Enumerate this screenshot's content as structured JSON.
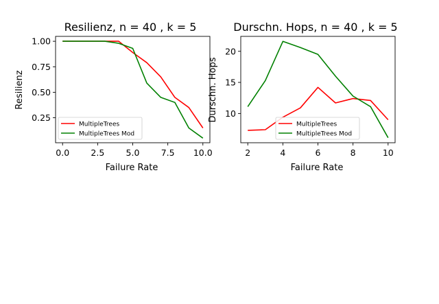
{
  "chart_data": [
    {
      "type": "line",
      "title": "Resilienz, n = 40 , k = 5",
      "xlabel": "Failure Rate",
      "ylabel": "Resilienz",
      "xlim": [
        -0.5,
        10.5
      ],
      "ylim": [
        0.005,
        1.048
      ],
      "xticks": [
        0.0,
        2.5,
        5.0,
        7.5,
        10.0
      ],
      "xtick_labels": [
        "0.0",
        "2.5",
        "5.0",
        "7.5",
        "10.0"
      ],
      "yticks": [
        0.25,
        0.5,
        0.75,
        1.0
      ],
      "ytick_labels": [
        "0.25",
        "0.50",
        "0.75",
        "1.00"
      ],
      "legend_position": "lower-left",
      "grid": false,
      "series": [
        {
          "name": "MultipleTrees",
          "color": "#ff0000",
          "x": [
            0,
            1,
            2,
            3,
            4,
            5,
            6,
            7,
            8,
            9,
            10
          ],
          "y": [
            1.0,
            1.0,
            1.0,
            1.0,
            1.0,
            0.89,
            0.79,
            0.65,
            0.45,
            0.35,
            0.15
          ]
        },
        {
          "name": "MultipleTrees Mod",
          "color": "#008000",
          "x": [
            0,
            1,
            2,
            3,
            4,
            5,
            6,
            7,
            8,
            9,
            10
          ],
          "y": [
            1.0,
            1.0,
            1.0,
            1.0,
            0.98,
            0.93,
            0.59,
            0.45,
            0.4,
            0.15,
            0.05
          ]
        }
      ]
    },
    {
      "type": "line",
      "title": "Durschn. Hops, n = 40 , k = 5",
      "xlabel": "Failure Rate",
      "ylabel": "Durschn. Hops",
      "xlim": [
        1.6,
        10.4
      ],
      "ylim": [
        5.3,
        22.4
      ],
      "xticks": [
        2,
        4,
        6,
        8,
        10
      ],
      "xtick_labels": [
        "2",
        "4",
        "6",
        "8",
        "10"
      ],
      "yticks": [
        10,
        15,
        20
      ],
      "ytick_labels": [
        "10",
        "15",
        "20"
      ],
      "legend_position": "lower-center",
      "grid": false,
      "series": [
        {
          "name": "MultipleTrees",
          "color": "#ff0000",
          "x": [
            2,
            3,
            4,
            5,
            6,
            7,
            8,
            9,
            10
          ],
          "y": [
            7.3,
            7.4,
            9.4,
            10.9,
            14.2,
            11.7,
            12.4,
            12.1,
            9.0
          ]
        },
        {
          "name": "MultipleTrees Mod",
          "color": "#008000",
          "x": [
            2,
            3,
            4,
            5,
            6,
            7,
            8,
            9,
            10
          ],
          "y": [
            11.1,
            15.3,
            21.6,
            20.6,
            19.5,
            16.0,
            12.8,
            11.1,
            6.1
          ]
        }
      ]
    }
  ]
}
